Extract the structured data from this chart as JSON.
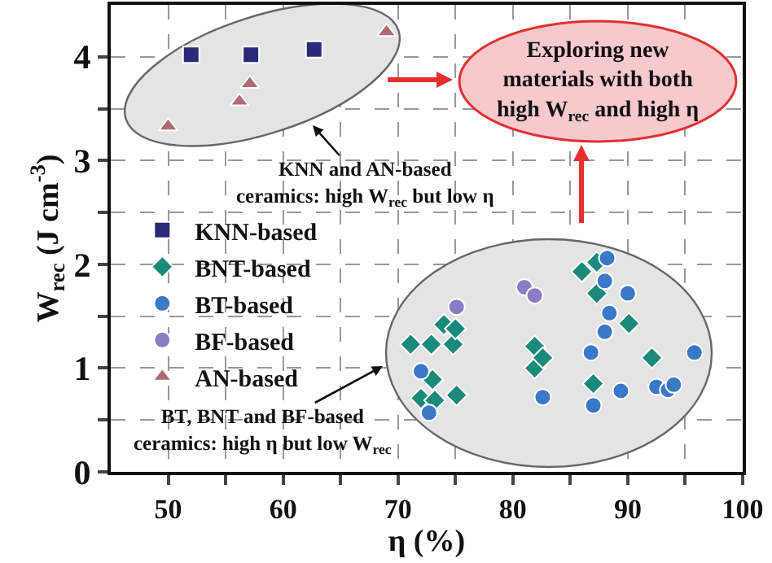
{
  "chart_data": {
    "type": "scatter",
    "xlabel": "η (%)",
    "ylabel": "W$_{rec}$ (J cm$^{-3}$)",
    "xlim": [
      45,
      100
    ],
    "xticks": [
      50,
      {
        "value": 55,
        "label": null
      },
      60,
      {
        "value": 65,
        "label": null
      },
      70,
      {
        "value": 75,
        "label": null
      },
      80,
      {
        "value": 85,
        "label": null
      },
      90,
      {
        "value": 95,
        "label": null
      },
      100
    ],
    "ylim": [
      0,
      4.5
    ],
    "yticks": [
      0,
      {
        "value": 0.5,
        "label": null
      },
      1,
      {
        "value": 1.5,
        "label": null
      },
      2,
      {
        "value": 2.5,
        "label": null
      },
      3,
      {
        "value": 3.5,
        "label": null
      },
      4
    ],
    "grid": true,
    "legend": "left",
    "series": [
      {
        "name": "KNN-based",
        "color": "#2b2a7a",
        "marker": "square",
        "x": [
          52.0,
          57.2,
          62.7
        ],
        "values": [
          4.02,
          4.02,
          4.07
        ]
      },
      {
        "name": "BNT-based",
        "color": "#1a8a7a",
        "marker": "diamond",
        "x": [
          86.0,
          87.3,
          87.3,
          90.1,
          71.1,
          72.9,
          74.8,
          74.0,
          75.0,
          81.9,
          81.9,
          82.6,
          73.0,
          75.1,
          72.0,
          73.2,
          87.0,
          92.1
        ],
        "values": [
          1.93,
          2.02,
          1.72,
          1.43,
          1.23,
          1.23,
          1.23,
          1.42,
          1.38,
          1.21,
          1.0,
          1.1,
          0.89,
          0.74,
          0.71,
          0.69,
          0.85,
          1.1
        ]
      },
      {
        "name": "BT-based",
        "color": "#3a78c8",
        "marker": "circle",
        "x": [
          88.2,
          88.0,
          90.0,
          88.4,
          88.0,
          86.8,
          95.8,
          72.0,
          72.7,
          82.6,
          87.0,
          89.4,
          92.5,
          93.5,
          94.0
        ],
        "values": [
          2.06,
          1.84,
          1.72,
          1.53,
          1.35,
          1.15,
          1.15,
          0.97,
          0.57,
          0.72,
          0.64,
          0.78,
          0.82,
          0.79,
          0.84
        ]
      },
      {
        "name": "BF-based",
        "color": "#8c7cc4",
        "marker": "circle",
        "x": [
          75.1,
          81.0,
          81.9
        ],
        "values": [
          1.59,
          1.78,
          1.7
        ]
      },
      {
        "name": "AN-based",
        "color": "#b06a70",
        "marker": "triangle",
        "x": [
          50.0,
          56.2,
          57.1,
          69.0
        ],
        "values": [
          3.33,
          3.57,
          3.74,
          4.24
        ]
      }
    ],
    "annotations": [
      "KNN and AN-based ceramics: high W$_{rec}$ but low η",
      "Exploring new materials with both high W$_{rec}$ and high η",
      "BT, BNT and BF-based ceramics: high η but low W$_{rec}$"
    ]
  }
}
